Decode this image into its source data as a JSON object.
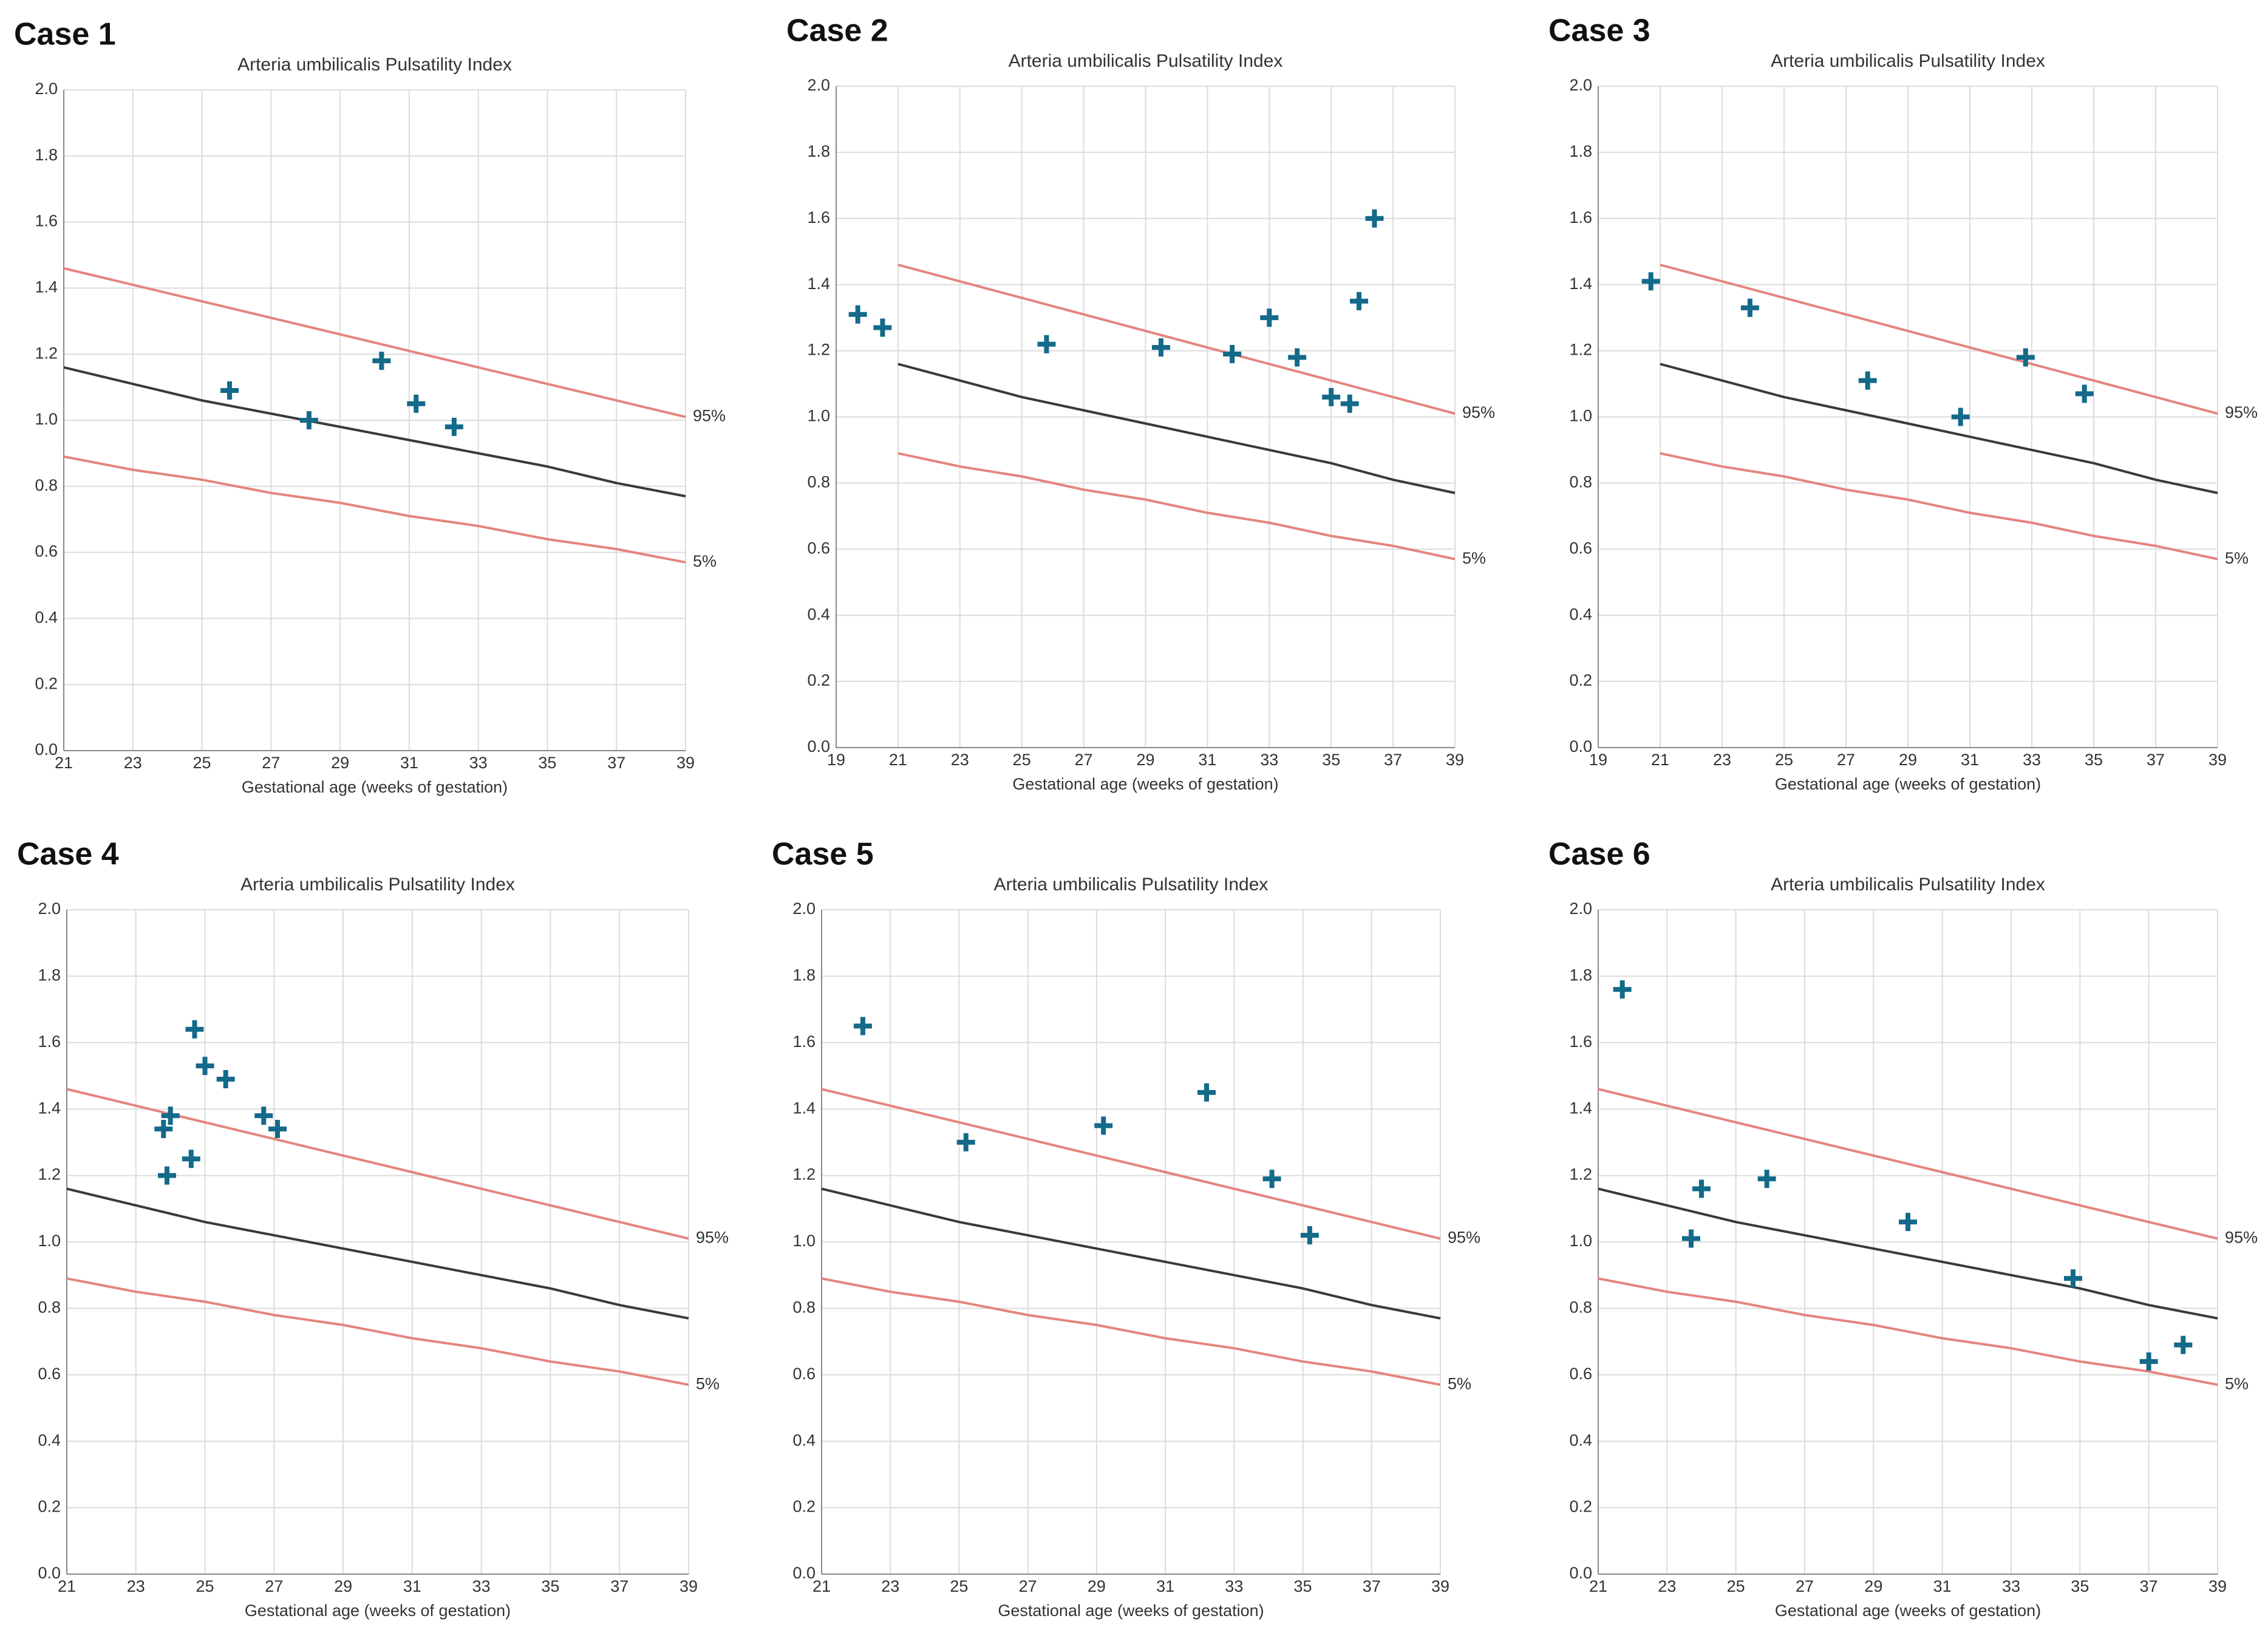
{
  "chart_data": [
    {
      "type": "scatter",
      "heading": "Case 1",
      "title": "Arteria umbilicalis Pulsatility Index",
      "x_label": "Gestational age (weeks of gestation)",
      "xlim": [
        21,
        39
      ],
      "xticks": [
        21,
        23,
        25,
        27,
        29,
        31,
        33,
        35,
        37,
        39
      ],
      "ylim": [
        0,
        2
      ],
      "yticks": [
        {
          "value": 0,
          "label": "0.0"
        },
        {
          "value": 0.2,
          "label": "0.2"
        },
        {
          "value": 0.4,
          "label": "0.4"
        },
        {
          "value": 0.6,
          "label": "0.6"
        },
        {
          "value": 0.8,
          "label": "0.8"
        },
        {
          "value": 1,
          "label": "1.0"
        },
        {
          "value": 1.2,
          "label": "1.2"
        },
        {
          "value": 1.4,
          "label": "1.4"
        },
        {
          "value": 1.6,
          "label": "1.6"
        },
        {
          "value": 1.8,
          "label": "1.8"
        },
        {
          "value": 2,
          "label": "2.0"
        }
      ],
      "grid": true,
      "lines": [
        {
          "name": "95%",
          "color": "#e4847f",
          "x": [
            21,
            23,
            25,
            27,
            29,
            31,
            33,
            35,
            37,
            39
          ],
          "values": [
            1.46,
            1.41,
            1.36,
            1.31,
            1.26,
            1.21,
            1.16,
            1.11,
            1.06,
            1.01
          ]
        },
        {
          "color": "#3a3a3a",
          "x": [
            21,
            23,
            25,
            27,
            29,
            31,
            33,
            35,
            37,
            39
          ],
          "values": [
            1.16,
            1.11,
            1.06,
            1.02,
            0.98,
            0.94,
            0.9,
            0.86,
            0.81,
            0.77
          ]
        },
        {
          "name": "5%",
          "color": "#e4847f",
          "x": [
            21,
            23,
            25,
            27,
            29,
            31,
            33,
            35,
            37,
            39
          ],
          "values": [
            0.89,
            0.85,
            0.82,
            0.78,
            0.75,
            0.71,
            0.68,
            0.64,
            0.61,
            0.57
          ]
        }
      ],
      "points": {
        "color": "#136a8a",
        "x": [
          25.8,
          28.1,
          30.2,
          31.2,
          32.3
        ],
        "values": [
          1.09,
          1.0,
          1.18,
          1.05,
          0.98
        ]
      }
    },
    {
      "type": "scatter",
      "heading": "Case 2",
      "title": "Arteria umbilicalis Pulsatility Index",
      "x_label": "Gestational age (weeks of gestation)",
      "xlim": [
        19,
        39
      ],
      "xticks": [
        19,
        21,
        23,
        25,
        27,
        29,
        31,
        33,
        35,
        37,
        39
      ],
      "ylim": [
        0,
        2
      ],
      "yticks": [
        {
          "value": 0,
          "label": "0.0"
        },
        {
          "value": 0.2,
          "label": "0.2"
        },
        {
          "value": 0.4,
          "label": "0.4"
        },
        {
          "value": 0.6,
          "label": "0.6"
        },
        {
          "value": 0.8,
          "label": "0.8"
        },
        {
          "value": 1,
          "label": "1.0"
        },
        {
          "value": 1.2,
          "label": "1.2"
        },
        {
          "value": 1.4,
          "label": "1.4"
        },
        {
          "value": 1.6,
          "label": "1.6"
        },
        {
          "value": 1.8,
          "label": "1.8"
        },
        {
          "value": 2,
          "label": "2.0"
        }
      ],
      "grid": true,
      "lines": [
        {
          "name": "95%",
          "color": "#e4847f",
          "x": [
            21,
            23,
            25,
            27,
            29,
            31,
            33,
            35,
            37,
            39
          ],
          "values": [
            1.46,
            1.41,
            1.36,
            1.31,
            1.26,
            1.21,
            1.16,
            1.11,
            1.06,
            1.01
          ]
        },
        {
          "color": "#3a3a3a",
          "x": [
            21,
            23,
            25,
            27,
            29,
            31,
            33,
            35,
            37,
            39
          ],
          "values": [
            1.16,
            1.11,
            1.06,
            1.02,
            0.98,
            0.94,
            0.9,
            0.86,
            0.81,
            0.77
          ]
        },
        {
          "name": "5%",
          "color": "#e4847f",
          "x": [
            21,
            23,
            25,
            27,
            29,
            31,
            33,
            35,
            37,
            39
          ],
          "values": [
            0.89,
            0.85,
            0.82,
            0.78,
            0.75,
            0.71,
            0.68,
            0.64,
            0.61,
            0.57
          ]
        }
      ],
      "points": {
        "color": "#136a8a",
        "x": [
          19.7,
          20.5,
          25.8,
          29.5,
          31.8,
          33.0,
          33.9,
          35.0,
          35.6,
          35.9,
          36.4
        ],
        "values": [
          1.31,
          1.27,
          1.22,
          1.21,
          1.19,
          1.3,
          1.18,
          1.06,
          1.04,
          1.35,
          1.6
        ]
      }
    },
    {
      "type": "scatter",
      "heading": "Case 3",
      "title": "Arteria umbilicalis Pulsatility Index",
      "x_label": "Gestational age (weeks of gestation)",
      "xlim": [
        19,
        39
      ],
      "xticks": [
        19,
        21,
        23,
        25,
        27,
        29,
        31,
        33,
        35,
        37,
        39
      ],
      "ylim": [
        0,
        2
      ],
      "yticks": [
        {
          "value": 0,
          "label": "0.0"
        },
        {
          "value": 0.2,
          "label": "0.2"
        },
        {
          "value": 0.4,
          "label": "0.4"
        },
        {
          "value": 0.6,
          "label": "0.6"
        },
        {
          "value": 0.8,
          "label": "0.8"
        },
        {
          "value": 1,
          "label": "1.0"
        },
        {
          "value": 1.2,
          "label": "1.2"
        },
        {
          "value": 1.4,
          "label": "1.4"
        },
        {
          "value": 1.6,
          "label": "1.6"
        },
        {
          "value": 1.8,
          "label": "1.8"
        },
        {
          "value": 2,
          "label": "2.0"
        }
      ],
      "grid": true,
      "lines": [
        {
          "name": "95%",
          "color": "#e4847f",
          "x": [
            21,
            23,
            25,
            27,
            29,
            31,
            33,
            35,
            37,
            39
          ],
          "values": [
            1.46,
            1.41,
            1.36,
            1.31,
            1.26,
            1.21,
            1.16,
            1.11,
            1.06,
            1.01
          ]
        },
        {
          "color": "#3a3a3a",
          "x": [
            21,
            23,
            25,
            27,
            29,
            31,
            33,
            35,
            37,
            39
          ],
          "values": [
            1.16,
            1.11,
            1.06,
            1.02,
            0.98,
            0.94,
            0.9,
            0.86,
            0.81,
            0.77
          ]
        },
        {
          "name": "5%",
          "color": "#e4847f",
          "x": [
            21,
            23,
            25,
            27,
            29,
            31,
            33,
            35,
            37,
            39
          ],
          "values": [
            0.89,
            0.85,
            0.82,
            0.78,
            0.75,
            0.71,
            0.68,
            0.64,
            0.61,
            0.57
          ]
        }
      ],
      "points": {
        "color": "#136a8a",
        "x": [
          20.7,
          23.9,
          27.7,
          30.7,
          32.8,
          34.7
        ],
        "values": [
          1.41,
          1.33,
          1.11,
          1.0,
          1.18,
          1.07
        ]
      }
    },
    {
      "type": "scatter",
      "heading": "Case 4",
      "title": "Arteria umbilicalis Pulsatility Index",
      "x_label": "Gestational age (weeks of gestation)",
      "xlim": [
        21,
        39
      ],
      "xticks": [
        21,
        23,
        25,
        27,
        29,
        31,
        33,
        35,
        37,
        39
      ],
      "ylim": [
        0,
        2
      ],
      "yticks": [
        {
          "value": 0,
          "label": "0.0"
        },
        {
          "value": 0.2,
          "label": "0.2"
        },
        {
          "value": 0.4,
          "label": "0.4"
        },
        {
          "value": 0.6,
          "label": "0.6"
        },
        {
          "value": 0.8,
          "label": "0.8"
        },
        {
          "value": 1,
          "label": "1.0"
        },
        {
          "value": 1.2,
          "label": "1.2"
        },
        {
          "value": 1.4,
          "label": "1.4"
        },
        {
          "value": 1.6,
          "label": "1.6"
        },
        {
          "value": 1.8,
          "label": "1.8"
        },
        {
          "value": 2,
          "label": "2.0"
        }
      ],
      "grid": true,
      "lines": [
        {
          "name": "95%",
          "color": "#e4847f",
          "x": [
            21,
            23,
            25,
            27,
            29,
            31,
            33,
            35,
            37,
            39
          ],
          "values": [
            1.46,
            1.41,
            1.36,
            1.31,
            1.26,
            1.21,
            1.16,
            1.11,
            1.06,
            1.01
          ]
        },
        {
          "color": "#3a3a3a",
          "x": [
            21,
            23,
            25,
            27,
            29,
            31,
            33,
            35,
            37,
            39
          ],
          "values": [
            1.16,
            1.11,
            1.06,
            1.02,
            0.98,
            0.94,
            0.9,
            0.86,
            0.81,
            0.77
          ]
        },
        {
          "name": "5%",
          "color": "#e4847f",
          "x": [
            21,
            23,
            25,
            27,
            29,
            31,
            33,
            35,
            37,
            39
          ],
          "values": [
            0.89,
            0.85,
            0.82,
            0.78,
            0.75,
            0.71,
            0.68,
            0.64,
            0.61,
            0.57
          ]
        }
      ],
      "points": {
        "color": "#136a8a",
        "x": [
          23.8,
          24.0,
          23.9,
          24.6,
          24.7,
          25.0,
          25.6,
          26.7,
          27.1
        ],
        "values": [
          1.34,
          1.38,
          1.2,
          1.25,
          1.64,
          1.53,
          1.49,
          1.38,
          1.34
        ]
      }
    },
    {
      "type": "scatter",
      "heading": "Case 5",
      "title": "Arteria umbilicalis Pulsatility Index",
      "x_label": "Gestational age (weeks of gestation)",
      "xlim": [
        21,
        39
      ],
      "xticks": [
        21,
        23,
        25,
        27,
        29,
        31,
        33,
        35,
        37,
        39
      ],
      "ylim": [
        0,
        2
      ],
      "yticks": [
        {
          "value": 0,
          "label": "0.0"
        },
        {
          "value": 0.2,
          "label": "0.2"
        },
        {
          "value": 0.4,
          "label": "0.4"
        },
        {
          "value": 0.6,
          "label": "0.6"
        },
        {
          "value": 0.8,
          "label": "0.8"
        },
        {
          "value": 1,
          "label": "1.0"
        },
        {
          "value": 1.2,
          "label": "1.2"
        },
        {
          "value": 1.4,
          "label": "1.4"
        },
        {
          "value": 1.6,
          "label": "1.6"
        },
        {
          "value": 1.8,
          "label": "1.8"
        },
        {
          "value": 2,
          "label": "2.0"
        }
      ],
      "grid": true,
      "lines": [
        {
          "name": "95%",
          "color": "#e4847f",
          "x": [
            21,
            23,
            25,
            27,
            29,
            31,
            33,
            35,
            37,
            39
          ],
          "values": [
            1.46,
            1.41,
            1.36,
            1.31,
            1.26,
            1.21,
            1.16,
            1.11,
            1.06,
            1.01
          ]
        },
        {
          "color": "#3a3a3a",
          "x": [
            21,
            23,
            25,
            27,
            29,
            31,
            33,
            35,
            37,
            39
          ],
          "values": [
            1.16,
            1.11,
            1.06,
            1.02,
            0.98,
            0.94,
            0.9,
            0.86,
            0.81,
            0.77
          ]
        },
        {
          "name": "5%",
          "color": "#e4847f",
          "x": [
            21,
            23,
            25,
            27,
            29,
            31,
            33,
            35,
            37,
            39
          ],
          "values": [
            0.89,
            0.85,
            0.82,
            0.78,
            0.75,
            0.71,
            0.68,
            0.64,
            0.61,
            0.57
          ]
        }
      ],
      "points": {
        "color": "#136a8a",
        "x": [
          22.2,
          25.2,
          29.2,
          32.2,
          34.1,
          35.2
        ],
        "values": [
          1.65,
          1.3,
          1.35,
          1.45,
          1.19,
          1.02
        ]
      }
    },
    {
      "type": "scatter",
      "heading": "Case 6",
      "title": "Arteria umbilicalis Pulsatility Index",
      "x_label": "Gestational age (weeks of gestation)",
      "xlim": [
        21,
        39
      ],
      "xticks": [
        21,
        23,
        25,
        27,
        29,
        31,
        33,
        35,
        37,
        39
      ],
      "ylim": [
        0,
        2
      ],
      "yticks": [
        {
          "value": 0,
          "label": "0.0"
        },
        {
          "value": 0.2,
          "label": "0.2"
        },
        {
          "value": 0.4,
          "label": "0.4"
        },
        {
          "value": 0.6,
          "label": "0.6"
        },
        {
          "value": 0.8,
          "label": "0.8"
        },
        {
          "value": 1,
          "label": "1.0"
        },
        {
          "value": 1.2,
          "label": "1.2"
        },
        {
          "value": 1.4,
          "label": "1.4"
        },
        {
          "value": 1.6,
          "label": "1.6"
        },
        {
          "value": 1.8,
          "label": "1.8"
        },
        {
          "value": 2,
          "label": "2.0"
        }
      ],
      "grid": true,
      "lines": [
        {
          "name": "95%",
          "color": "#e4847f",
          "x": [
            21,
            23,
            25,
            27,
            29,
            31,
            33,
            35,
            37,
            39
          ],
          "values": [
            1.46,
            1.41,
            1.36,
            1.31,
            1.26,
            1.21,
            1.16,
            1.11,
            1.06,
            1.01
          ]
        },
        {
          "color": "#3a3a3a",
          "x": [
            21,
            23,
            25,
            27,
            29,
            31,
            33,
            35,
            37,
            39
          ],
          "values": [
            1.16,
            1.11,
            1.06,
            1.02,
            0.98,
            0.94,
            0.9,
            0.86,
            0.81,
            0.77
          ]
        },
        {
          "name": "5%",
          "color": "#e4847f",
          "x": [
            21,
            23,
            25,
            27,
            29,
            31,
            33,
            35,
            37,
            39
          ],
          "values": [
            0.89,
            0.85,
            0.82,
            0.78,
            0.75,
            0.71,
            0.68,
            0.64,
            0.61,
            0.57
          ]
        }
      ],
      "points": {
        "color": "#136a8a",
        "x": [
          21.7,
          23.7,
          24.0,
          25.9,
          30.0,
          34.8,
          37.0,
          38.0
        ],
        "values": [
          1.76,
          1.01,
          1.16,
          1.19,
          1.06,
          0.89,
          0.64,
          0.69
        ]
      }
    }
  ]
}
